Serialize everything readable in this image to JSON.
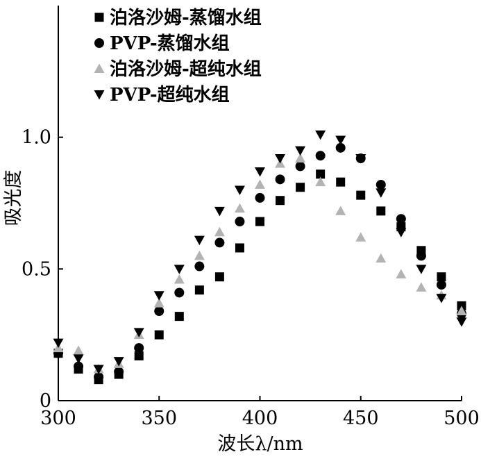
{
  "chart_data": {
    "type": "scatter",
    "title": "",
    "xlabel": "波长λ/nm",
    "ylabel": "吸光度",
    "xlim": [
      300,
      500
    ],
    "ylim": [
      0,
      1.5
    ],
    "x_ticks": [
      "300",
      "350",
      "400",
      "450",
      "500"
    ],
    "y_ticks": [
      "0",
      "0.5",
      "1.0"
    ],
    "legend_position": "top-left",
    "grid": false,
    "x": [
      300,
      310,
      320,
      330,
      340,
      350,
      360,
      370,
      380,
      390,
      400,
      410,
      420,
      430,
      440,
      450,
      460,
      470,
      480,
      490,
      500
    ],
    "series": [
      {
        "name": "泊洛沙姆-蒸馏水组",
        "marker": "square",
        "color": "#000000",
        "values": [
          0.18,
          0.12,
          0.08,
          0.1,
          0.17,
          0.25,
          0.32,
          0.42,
          0.47,
          0.58,
          0.68,
          0.76,
          0.81,
          0.86,
          0.83,
          0.78,
          0.72,
          0.66,
          0.57,
          0.47,
          0.36
        ]
      },
      {
        "name": "PVP-蒸馏水组",
        "marker": "circle",
        "color": "#000000",
        "values": [
          0.18,
          0.13,
          0.09,
          0.11,
          0.2,
          0.34,
          0.41,
          0.51,
          0.6,
          0.68,
          0.77,
          0.84,
          0.89,
          0.93,
          0.96,
          0.92,
          0.82,
          0.69,
          0.55,
          0.44,
          0.33
        ]
      },
      {
        "name": "泊洛沙姆-超纯水组",
        "marker": "triangle-up",
        "color": "#b3b3b3",
        "values": [
          0.2,
          0.19,
          0.12,
          0.14,
          0.25,
          0.37,
          0.46,
          0.55,
          0.64,
          0.73,
          0.82,
          0.9,
          0.92,
          0.83,
          0.72,
          0.62,
          0.54,
          0.48,
          0.43,
          0.4,
          0.34
        ]
      },
      {
        "name": "PVP-超纯水组",
        "marker": "triangle-down",
        "color": "#000000",
        "values": [
          0.22,
          0.16,
          0.12,
          0.15,
          0.26,
          0.4,
          0.5,
          0.61,
          0.72,
          0.8,
          0.87,
          0.92,
          0.95,
          1.01,
          0.99,
          0.92,
          0.79,
          0.64,
          0.5,
          0.39,
          0.3
        ]
      }
    ]
  }
}
